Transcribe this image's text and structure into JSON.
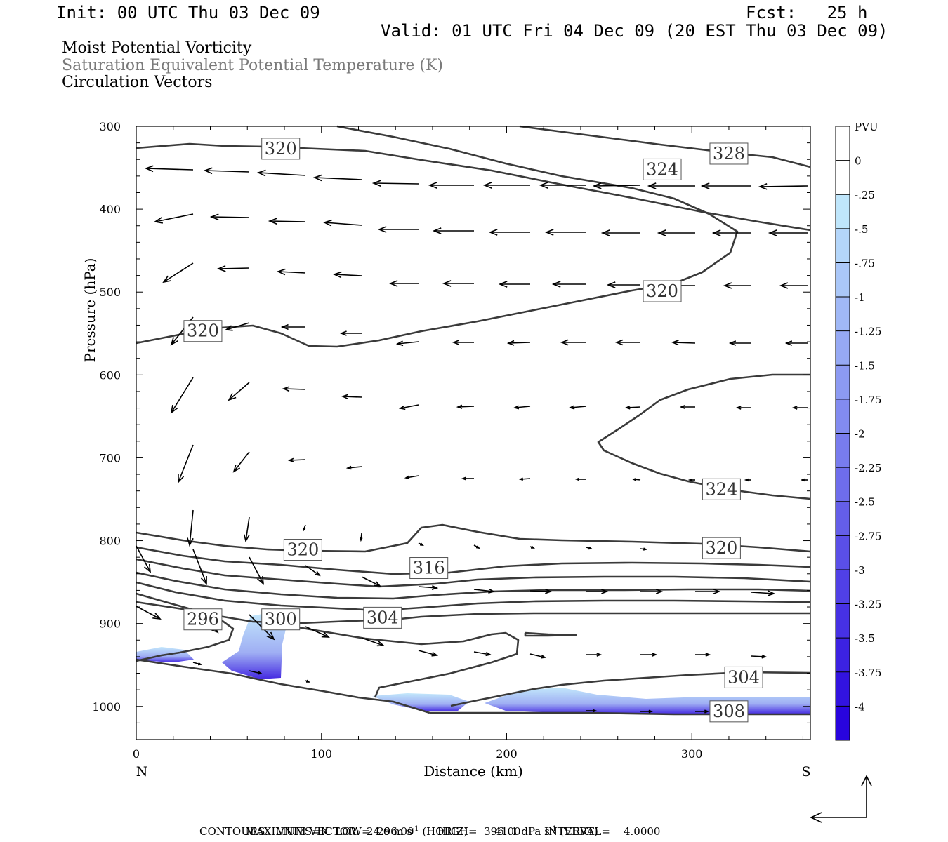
{
  "header": {
    "init": "Init: 00 UTC Thu 03 Dec 09",
    "fcst": "Fcst:   25 h",
    "valid": "Valid: 01 UTC Fri 04 Dec 09 (20 EST Thu 03 Dec 09)"
  },
  "titles": {
    "line1": "Moist Potential Vorticity",
    "line2": "Saturation Equivalent Potential Temperature (K)",
    "line3": "Circulation Vectors",
    "line2_color": "#7a7a7a"
  },
  "footer": {
    "max_vector_label": "MAXIMUM VECTOR:",
    "max_horiz": "24.6 m s",
    "horiz_sup": "-1",
    "horiz_tag": " (HORIZ)",
    "max_vert": "41.1 dPa s",
    "vert_sup": "-1",
    "vert_tag": " (VERT)",
    "contours": "CONTOURS:  UNITS=K  LOW=  296.00       HIGH=  396.00       INTERVAL=    4.0000"
  },
  "chart_data": {
    "type": "cross-section",
    "xlabel": "Distance (km)",
    "ylabel": "Pressure (hPa)",
    "xlim": [
      0,
      364
    ],
    "ylim": [
      300,
      1040
    ],
    "y_scale": "linear, inverted",
    "x_ticks": [
      0,
      100,
      200,
      300
    ],
    "y_ticks": [
      300,
      400,
      500,
      600,
      700,
      800,
      900,
      1000
    ],
    "x_end_labels": {
      "left": "N",
      "right": "S"
    },
    "colorbar": {
      "unit_label": "PVU",
      "labels": [
        "0",
        "-.25",
        "-.5",
        "-.75",
        "-1",
        "-1.25",
        "-1.5",
        "-1.75",
        "-2",
        "-2.25",
        "-2.5",
        "-2.75",
        "-3",
        "-3.25",
        "-3.5",
        "-3.75",
        "-4"
      ],
      "colors": [
        "#ffffff",
        "#ffffff",
        "#bfe6fb",
        "#b4d6fa",
        "#aac7f8",
        "#a0b8f6",
        "#96a9f4",
        "#8c9af2",
        "#828bf0",
        "#787cee",
        "#6e6dec",
        "#645ee9",
        "#5a4fe8",
        "#5040e6",
        "#4631e4",
        "#3c22e2",
        "#3213e0",
        "#2804de"
      ]
    },
    "contour_labels": [
      {
        "value": "320",
        "x": 78,
        "p": 327
      },
      {
        "value": "328",
        "x": 320,
        "p": 333
      },
      {
        "value": "324",
        "x": 284,
        "p": 352
      },
      {
        "value": "320",
        "x": 284,
        "p": 499
      },
      {
        "value": "320",
        "x": 36,
        "p": 547
      },
      {
        "value": "324",
        "x": 316,
        "p": 738
      },
      {
        "value": "320",
        "x": 90,
        "p": 811
      },
      {
        "value": "320",
        "x": 316,
        "p": 809
      },
      {
        "value": "316",
        "x": 158,
        "p": 833
      },
      {
        "value": "304",
        "x": 133,
        "p": 893
      },
      {
        "value": "296",
        "x": 36,
        "p": 895
      },
      {
        "value": "300",
        "x": 78,
        "p": 895
      },
      {
        "value": "304",
        "x": 328,
        "p": 965
      },
      {
        "value": "308",
        "x": 320,
        "p": 1006
      }
    ],
    "vector_scale_note": "max horiz 24.6 m s-1, max vert 41.1 dPa s-1"
  }
}
